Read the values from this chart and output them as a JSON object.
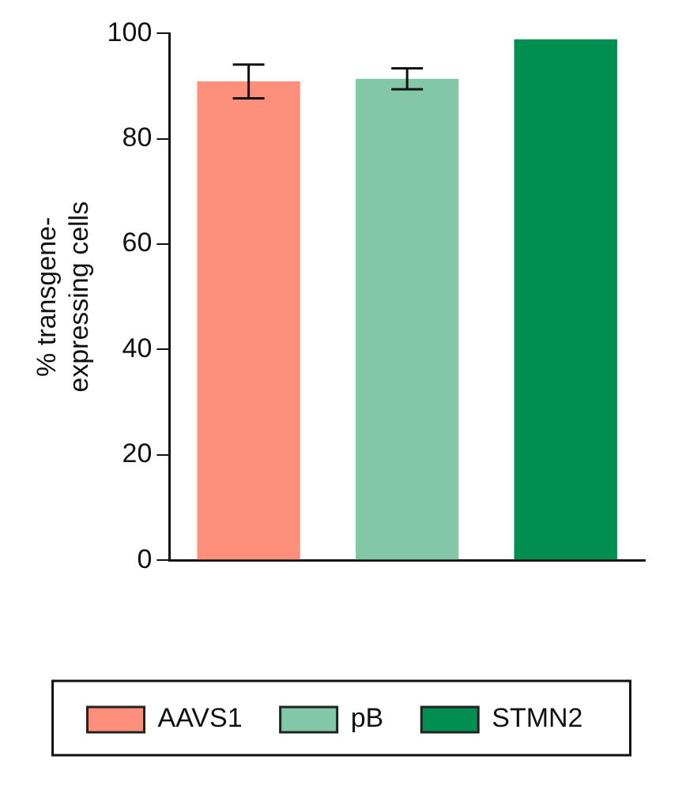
{
  "chart_data": {
    "type": "bar",
    "ylabel": "% transgene-expressing cells",
    "categories": [
      null,
      null,
      null
    ],
    "series": [
      {
        "name": "AAVS1",
        "color": "#fe8f7b",
        "values": [
          90.9,
          null,
          null
        ],
        "errors": [
          3.2,
          null,
          null
        ]
      },
      {
        "name": "pB",
        "color": "#82c8a8",
        "values": [
          null,
          91.4,
          null
        ],
        "errors": [
          null,
          2.0,
          null
        ]
      },
      {
        "name": "STMN2",
        "color": "#008f50",
        "values": [
          null,
          null,
          98.9
        ],
        "errors": [
          null,
          null,
          null
        ]
      }
    ],
    "ylim": [
      0,
      100
    ],
    "yticks": [
      0,
      20,
      40,
      60,
      80,
      100
    ],
    "grid": false,
    "legend": "bottom"
  }
}
